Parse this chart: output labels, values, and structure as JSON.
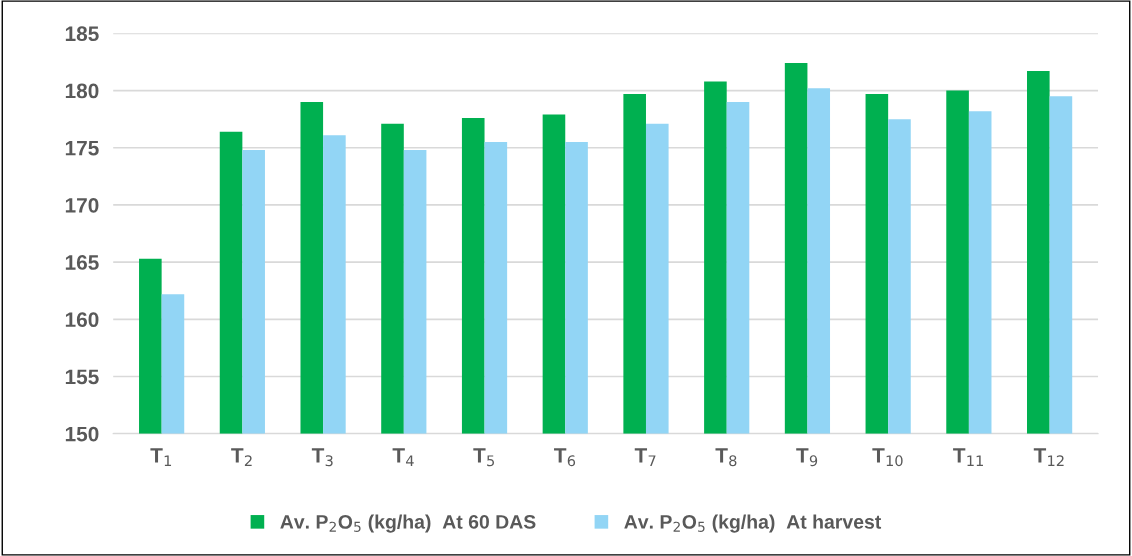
{
  "chart_data": {
    "type": "bar",
    "categories": [
      "T$_{1}$",
      "T$_{2}$",
      "T$_{3}$",
      "T$_{4}$",
      "T$_{5}$",
      "T$_{6}$",
      "T$_{7}$",
      "T$_{8}$",
      "T$_{9}$",
      "T$_{10}$",
      "T$_{11}$",
      "T$_{12}$"
    ],
    "series": [
      {
        "name": "Av. P$_{2}$O$_{5}$ (kg/ha)  At 60 DAS",
        "color": "#00b050",
        "values": [
          165.3,
          176.4,
          179.0,
          177.1,
          177.6,
          177.9,
          179.7,
          180.8,
          182.4,
          179.7,
          180.0,
          181.7
        ]
      },
      {
        "name": "Av. P$_{2}$O$_{5}$ (kg/ha)  At harvest",
        "color": "#92d5f5",
        "values": [
          162.2,
          174.8,
          176.1,
          174.8,
          175.5,
          175.5,
          177.1,
          179.0,
          180.2,
          177.5,
          178.2,
          179.5
        ]
      }
    ],
    "ylim": [
      150,
      185
    ],
    "yticks": [
      150,
      155,
      160,
      165,
      170,
      175,
      180,
      185
    ],
    "grid": "y",
    "legend": "bottom"
  }
}
